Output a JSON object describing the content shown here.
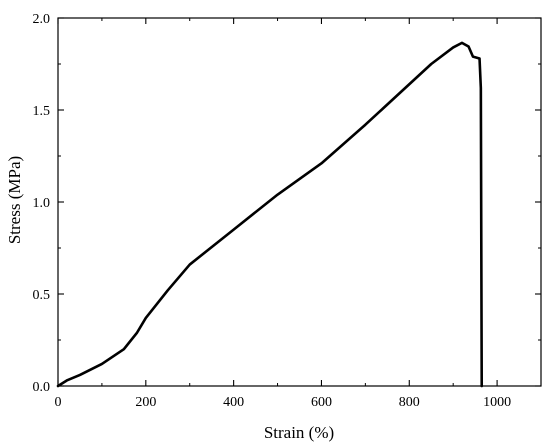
{
  "chart_data": {
    "type": "line",
    "title": "",
    "xlabel": "Strain (%)",
    "ylabel": "Stress (MPa)",
    "xlim": [
      0,
      1100
    ],
    "ylim": [
      0,
      2.0
    ],
    "x_ticks": [
      0,
      200,
      400,
      600,
      800,
      1000
    ],
    "x_tick_labels": [
      "0",
      "200",
      "400",
      "600",
      "800",
      "1000"
    ],
    "y_ticks": [
      0.0,
      0.5,
      1.0,
      1.5,
      2.0
    ],
    "y_tick_labels": [
      "0.0",
      "0.5",
      "1.0",
      "1.5",
      "2.0"
    ],
    "grid": false,
    "legend": "none",
    "line_color": "#000000",
    "series": [
      {
        "x": [
          0,
          20,
          50,
          100,
          150,
          180,
          200,
          250,
          300,
          400,
          500,
          600,
          700,
          800,
          850,
          900,
          920,
          935,
          945,
          960,
          963,
          965
        ],
        "y": [
          0.0,
          0.03,
          0.06,
          0.12,
          0.2,
          0.29,
          0.37,
          0.52,
          0.66,
          0.85,
          1.04,
          1.21,
          1.42,
          1.64,
          1.75,
          1.84,
          1.865,
          1.845,
          1.79,
          1.78,
          1.62,
          0.0
        ]
      }
    ]
  }
}
